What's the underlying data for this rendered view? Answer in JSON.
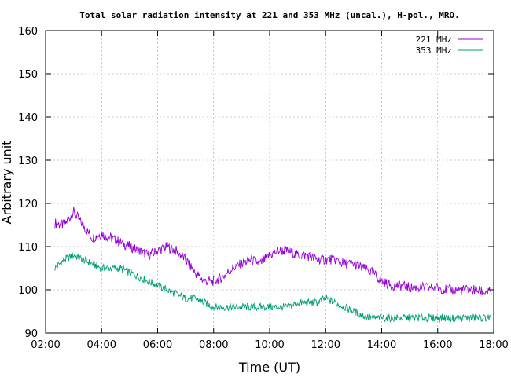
{
  "chart_data": {
    "type": "line",
    "title": "Total solar radiation intensity at 221 and 353 MHz (uncal.), H-pol., MRO.",
    "xlabel": "Time (UT)",
    "ylabel": "Arbitrary unit",
    "xlim": [
      "02:00",
      "18:00"
    ],
    "ylim": [
      90,
      160
    ],
    "x_ticks": [
      "02:00",
      "04:00",
      "06:00",
      "08:00",
      "10:00",
      "12:00",
      "14:00",
      "16:00",
      "18:00"
    ],
    "y_ticks": [
      90,
      100,
      110,
      120,
      130,
      140,
      150,
      160
    ],
    "grid": true,
    "legend_position": "top-right",
    "colors": {
      "s221": "#9400d3",
      "s353": "#009e73"
    },
    "series": [
      {
        "name": "221 MHz",
        "x": [
          "02:20",
          "02:40",
          "03:00",
          "03:20",
          "03:40",
          "04:00",
          "04:20",
          "04:40",
          "05:00",
          "05:20",
          "05:40",
          "06:00",
          "06:20",
          "06:40",
          "07:00",
          "07:20",
          "07:40",
          "08:00",
          "08:20",
          "08:40",
          "09:00",
          "09:20",
          "09:40",
          "10:00",
          "10:20",
          "10:40",
          "11:00",
          "11:20",
          "11:40",
          "12:00",
          "12:20",
          "12:40",
          "13:00",
          "13:20",
          "13:40",
          "14:00",
          "14:20",
          "14:40",
          "15:00",
          "15:20",
          "15:40",
          "16:00",
          "16:20",
          "16:40",
          "17:00",
          "17:20",
          "17:40",
          "17:55"
        ],
        "values": [
          115.5,
          115,
          118,
          115,
          112,
          113,
          112,
          111,
          110,
          109,
          108,
          109,
          110,
          109,
          107,
          104,
          102,
          102,
          103,
          105,
          106,
          107,
          106,
          108,
          109,
          109,
          108,
          108,
          107,
          107,
          107,
          106,
          106,
          105,
          104,
          102,
          101,
          101,
          100.5,
          100.5,
          100.5,
          100.5,
          100,
          100,
          100,
          100,
          99.5,
          99.5
        ]
      },
      {
        "name": "353 MHz",
        "x": [
          "02:20",
          "02:40",
          "03:00",
          "03:20",
          "03:40",
          "04:00",
          "04:20",
          "04:40",
          "05:00",
          "05:20",
          "05:40",
          "06:00",
          "06:20",
          "06:40",
          "07:00",
          "07:20",
          "07:40",
          "08:00",
          "08:20",
          "08:40",
          "09:00",
          "09:20",
          "09:40",
          "10:00",
          "10:20",
          "10:40",
          "11:00",
          "11:20",
          "11:40",
          "12:00",
          "12:20",
          "12:40",
          "13:00",
          "13:20",
          "13:40",
          "14:00",
          "14:20",
          "14:40",
          "15:00",
          "15:20",
          "15:40",
          "16:00",
          "16:20",
          "16:40",
          "17:00",
          "17:20",
          "17:40",
          "17:55"
        ],
        "values": [
          105,
          107,
          108,
          107,
          106,
          105,
          105,
          105,
          104,
          103,
          102,
          101,
          100,
          99,
          98,
          98,
          97,
          96,
          96,
          96,
          96,
          96,
          96,
          96,
          96,
          96,
          97,
          97,
          97,
          98,
          97,
          96,
          95,
          94,
          93.5,
          93.5,
          93.5,
          93.5,
          93.5,
          93.5,
          93.5,
          93.5,
          93.5,
          93.5,
          93.5,
          93.5,
          93.5,
          93.5
        ]
      }
    ]
  }
}
